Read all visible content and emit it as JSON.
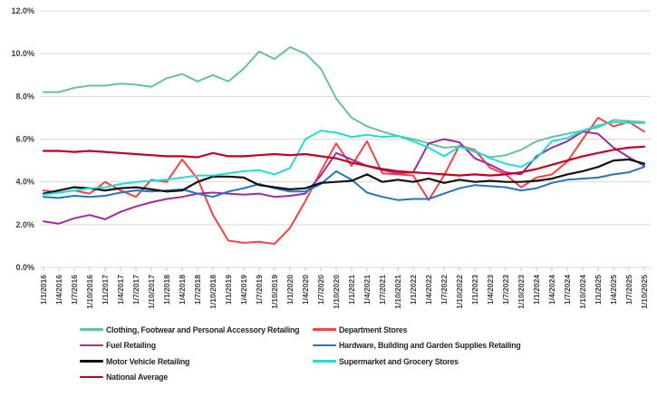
{
  "chart_data": {
    "type": "line",
    "title": "",
    "xlabel": "",
    "ylabel": "",
    "ylim": [
      0,
      12
    ],
    "y_tick_step": 2,
    "y_tick_labels": [
      "0.0%",
      "2.0%",
      "4.0%",
      "6.0%",
      "8.0%",
      "10.0%",
      "12.0%"
    ],
    "grid": true,
    "legend_position": "bottom",
    "x_labels": [
      "1/1/2016",
      "1/4/2016",
      "1/7/2016",
      "1/10/2016",
      "1/1/2017",
      "1/4/2017",
      "1/7/2017",
      "1/10/2017",
      "1/1/2018",
      "1/4/2018",
      "1/7/2018",
      "1/10/2018",
      "1/1/2019",
      "1/4/2019",
      "1/7/2019",
      "1/10/2019",
      "1/1/2020",
      "1/4/2020",
      "1/7/2020",
      "1/10/2020",
      "1/1/2021",
      "1/4/2021",
      "1/7/2021",
      "1/10/2021",
      "1/1/2022",
      "1/4/2022",
      "1/7/2022",
      "1/10/2022",
      "1/1/2023",
      "1/4/2023",
      "1/7/2023",
      "1/10/2023",
      "1/1/2024",
      "1/4/2024",
      "1/7/2024",
      "1/10/2024",
      "1/1/2025",
      "1/4/2025",
      "1/7/2025",
      "1/10/2025"
    ],
    "series": [
      {
        "id": "clothing-footwear",
        "name": "Clothing, Footwear and Personal Accessory Retailing",
        "color": "#66C2A1",
        "values": [
          8.2,
          8.2,
          8.4,
          8.5,
          8.5,
          8.6,
          8.55,
          8.45,
          8.85,
          9.05,
          8.7,
          9.0,
          8.7,
          9.3,
          10.1,
          9.75,
          10.3,
          10.0,
          9.3,
          7.9,
          7.0,
          6.6,
          6.35,
          6.15,
          6.0,
          5.8,
          5.6,
          5.65,
          5.4,
          5.15,
          5.25,
          5.5,
          5.9,
          6.1,
          6.25,
          6.4,
          6.55,
          6.9,
          6.85,
          6.8
        ]
      },
      {
        "id": "department-stores",
        "name": "Department Stores",
        "color": "#FB4242",
        "values": [
          3.6,
          3.5,
          3.6,
          3.45,
          4.0,
          3.6,
          3.3,
          4.1,
          4.0,
          5.05,
          4.15,
          2.45,
          1.25,
          1.15,
          1.2,
          1.1,
          1.85,
          3.1,
          4.5,
          5.8,
          4.75,
          5.9,
          4.4,
          4.35,
          4.3,
          3.15,
          4.3,
          5.7,
          5.5,
          4.65,
          4.35,
          3.75,
          4.2,
          4.35,
          4.95,
          6.0,
          7.0,
          6.6,
          6.8,
          6.35
        ]
      },
      {
        "id": "fuel-retailing",
        "name": "Fuel Retailing",
        "color": "#A02C9E",
        "values": [
          2.15,
          2.05,
          2.3,
          2.45,
          2.25,
          2.6,
          2.85,
          3.05,
          3.2,
          3.3,
          3.45,
          3.5,
          3.45,
          3.4,
          3.45,
          3.3,
          3.35,
          3.45,
          4.3,
          5.35,
          5.05,
          4.75,
          4.55,
          4.4,
          4.45,
          5.8,
          6.0,
          5.85,
          5.1,
          4.8,
          4.45,
          4.35,
          5.2,
          5.6,
          5.9,
          6.35,
          6.25,
          5.6,
          5.15,
          4.75
        ]
      },
      {
        "id": "hardware-building-garden",
        "name": "Hardware, Building and Garden Supplies Retailing",
        "color": "#2176BF",
        "values": [
          3.3,
          3.25,
          3.35,
          3.3,
          3.35,
          3.5,
          3.6,
          3.55,
          3.6,
          3.65,
          3.45,
          3.3,
          3.55,
          3.7,
          3.9,
          3.7,
          3.55,
          3.55,
          3.9,
          4.5,
          4.1,
          3.5,
          3.3,
          3.15,
          3.2,
          3.2,
          3.45,
          3.7,
          3.85,
          3.8,
          3.75,
          3.6,
          3.7,
          3.95,
          4.1,
          4.15,
          4.2,
          4.35,
          4.45,
          4.7
        ]
      },
      {
        "id": "motor-vehicle",
        "name": "Motor Vehicle Retailing",
        "color": "#111111",
        "values": [
          3.45,
          3.6,
          3.75,
          3.7,
          3.6,
          3.7,
          3.75,
          3.65,
          3.55,
          3.6,
          4.0,
          4.25,
          4.25,
          4.2,
          3.85,
          3.75,
          3.65,
          3.7,
          3.95,
          4.0,
          4.05,
          4.35,
          4.0,
          4.1,
          4.0,
          4.15,
          3.95,
          4.1,
          4.0,
          4.05,
          4.0,
          4.0,
          4.05,
          4.15,
          4.35,
          4.5,
          4.7,
          5.0,
          5.05,
          4.85
        ]
      },
      {
        "id": "supermarket-grocery",
        "name": "Supermarket and Grocery Stores",
        "color": "#25DCD2",
        "values": [
          3.4,
          3.5,
          3.6,
          3.7,
          3.75,
          3.9,
          4.0,
          4.05,
          4.1,
          4.2,
          4.3,
          4.3,
          4.4,
          4.5,
          4.55,
          4.35,
          4.65,
          6.0,
          6.4,
          6.3,
          6.1,
          6.2,
          6.1,
          6.15,
          5.9,
          5.6,
          5.2,
          5.65,
          5.45,
          5.1,
          4.85,
          4.7,
          5.1,
          5.9,
          6.05,
          6.4,
          6.65,
          6.8,
          6.75,
          6.75
        ]
      },
      {
        "id": "national-average",
        "name": "National Average",
        "color": "#C00025",
        "values": [
          5.45,
          5.45,
          5.4,
          5.45,
          5.4,
          5.35,
          5.3,
          5.25,
          5.2,
          5.2,
          5.15,
          5.35,
          5.2,
          5.2,
          5.25,
          5.3,
          5.25,
          5.3,
          5.2,
          5.1,
          4.9,
          4.75,
          4.6,
          4.5,
          4.45,
          4.4,
          4.35,
          4.3,
          4.35,
          4.3,
          4.35,
          4.45,
          4.6,
          4.8,
          5.0,
          5.2,
          5.35,
          5.5,
          5.6,
          5.65
        ]
      }
    ]
  },
  "colors": {
    "background": "#FFFFFF",
    "gridline": "#DADADA",
    "tick": "#C6C6C6",
    "axis_text": "#3F3F3F",
    "legend_text": "#262626"
  }
}
